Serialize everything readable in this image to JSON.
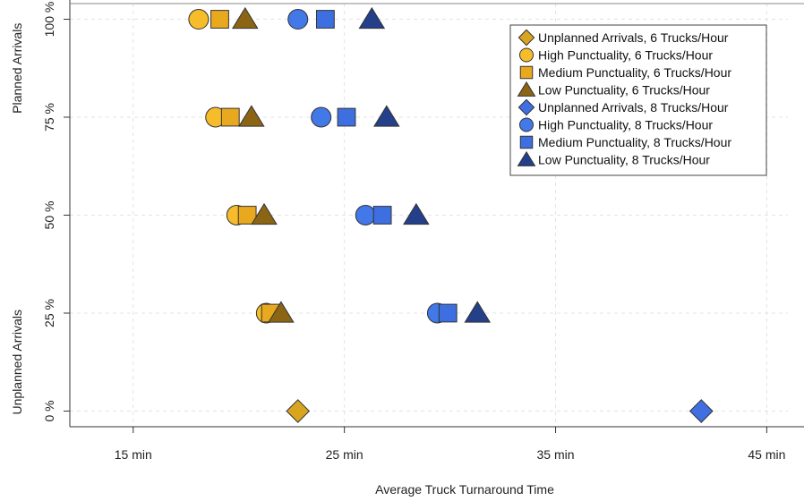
{
  "chart_data": {
    "type": "scatter",
    "xlabel": "Average Truck Turnaround Time",
    "ylabel_top": "Planned Arrivals",
    "ylabel_bottom": "Unplanned Arrivals",
    "x_ticks": [
      {
        "value": 15,
        "label": "15  min"
      },
      {
        "value": 25,
        "label": "25  min"
      },
      {
        "value": 35,
        "label": "35  min"
      },
      {
        "value": 45,
        "label": "45  min"
      }
    ],
    "y_ticks": [
      {
        "value": 0,
        "label": "0 %"
      },
      {
        "value": 25,
        "label": "25 %"
      },
      {
        "value": 50,
        "label": "50 %"
      },
      {
        "value": 75,
        "label": "75 %"
      },
      {
        "value": 100,
        "label": "100 %"
      }
    ],
    "xlim": [
      12,
      46
    ],
    "ylim": [
      -4,
      104
    ],
    "grid": true,
    "legend_position": "top-right",
    "series": [
      {
        "name": "Unplanned Arrivals, 6 Trucks/Hour",
        "marker": "diamond",
        "color": "#D9A520",
        "points": [
          {
            "x": 22.8,
            "y": 0
          }
        ]
      },
      {
        "name": "High Punctuality, 6 Trucks/Hour",
        "marker": "circle",
        "color": "#F7BC2A",
        "points": [
          {
            "x": 18.1,
            "y": 100
          },
          {
            "x": 18.9,
            "y": 75
          },
          {
            "x": 19.9,
            "y": 50
          },
          {
            "x": 21.3,
            "y": 25
          }
        ]
      },
      {
        "name": "Medium Punctuality, 6 Trucks/Hour",
        "marker": "square",
        "color": "#E9A91E",
        "points": [
          {
            "x": 19.1,
            "y": 100
          },
          {
            "x": 19.6,
            "y": 75
          },
          {
            "x": 20.4,
            "y": 50
          },
          {
            "x": 21.5,
            "y": 25
          }
        ]
      },
      {
        "name": "Low Punctuality, 6 Trucks/Hour",
        "marker": "triangle",
        "color": "#8B6514",
        "points": [
          {
            "x": 20.3,
            "y": 100
          },
          {
            "x": 20.6,
            "y": 75
          },
          {
            "x": 21.2,
            "y": 50
          },
          {
            "x": 22.0,
            "y": 25
          }
        ]
      },
      {
        "name": "Unplanned Arrivals, 8 Trucks/Hour",
        "marker": "diamond",
        "color": "#3F6FE0",
        "points": [
          {
            "x": 41.9,
            "y": 0
          }
        ]
      },
      {
        "name": "High Punctuality, 8 Trucks/Hour",
        "marker": "circle",
        "color": "#4278E8",
        "points": [
          {
            "x": 22.8,
            "y": 100
          },
          {
            "x": 23.9,
            "y": 75
          },
          {
            "x": 26.0,
            "y": 50
          },
          {
            "x": 29.4,
            "y": 25
          }
        ]
      },
      {
        "name": "Medium Punctuality, 8 Trucks/Hour",
        "marker": "square",
        "color": "#3D6FE0",
        "points": [
          {
            "x": 24.1,
            "y": 100
          },
          {
            "x": 25.1,
            "y": 75
          },
          {
            "x": 26.8,
            "y": 50
          },
          {
            "x": 29.9,
            "y": 25
          }
        ]
      },
      {
        "name": "Low Punctuality, 8 Trucks/Hour",
        "marker": "triangle",
        "color": "#24408A",
        "points": [
          {
            "x": 26.3,
            "y": 100
          },
          {
            "x": 27.0,
            "y": 75
          },
          {
            "x": 28.4,
            "y": 50
          },
          {
            "x": 31.3,
            "y": 25
          }
        ]
      }
    ]
  }
}
